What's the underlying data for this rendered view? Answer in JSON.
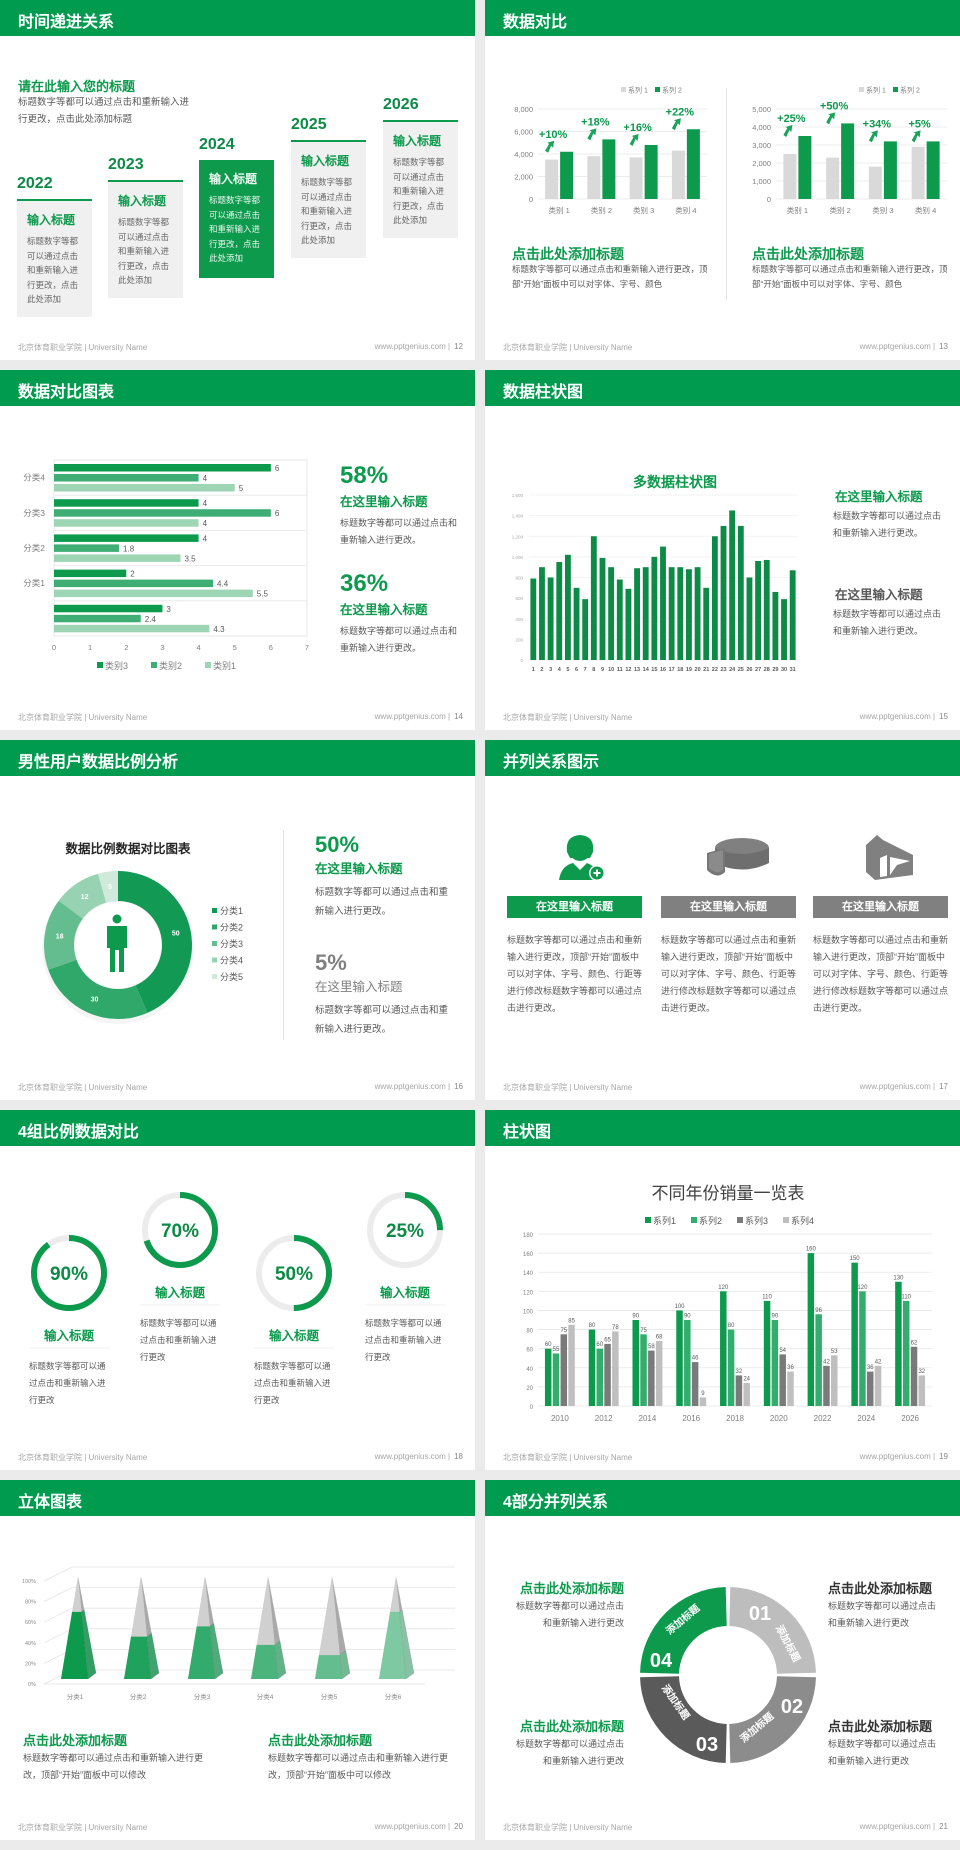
{
  "footer": {
    "school": "北京体育职业学院 | University Name",
    "site": "www.pptgenius.com  |"
  },
  "colors": {
    "brand": "#009b4f",
    "green": "#0d9a4d",
    "gray": "#7f7f7f",
    "light_gray": "#d9d9d9"
  },
  "s12": {
    "title": "时间递进关系",
    "page": "12",
    "subtitle": "请在此输入您的标题",
    "desc": "标题数字等都可以通过点击和重新输入进行更改，点击此处添加标题",
    "steps": [
      {
        "year": "2022",
        "heading": "输入标题",
        "body": "标题数字等都可以通过点击和重新输入进行更改，点击此处添加"
      },
      {
        "year": "2023",
        "heading": "输入标题",
        "body": "标题数字等都可以通过点击和重新输入进行更改，点击此处添加"
      },
      {
        "year": "2024",
        "heading": "输入标题",
        "body": "标题数字等都可以通过点击和重新输入进行更改，点击此处添加",
        "active": true
      },
      {
        "year": "2025",
        "heading": "输入标题",
        "body": "标题数字等都可以通过点击和重新输入进行更改，点击此处添加"
      },
      {
        "year": "2026",
        "heading": "输入标题",
        "body": "标题数字等都可以通过点击和重新输入进行更改，点击此处添加"
      }
    ]
  },
  "s13": {
    "title": "数据对比",
    "page": "13",
    "blocks": [
      {
        "heading": "点击此处添加标题",
        "body": "标题数字等都可以通过点击和重新输入进行更改，顶部“开始”面板中可以对字体、字号、颜色"
      },
      {
        "heading": "点击此处添加标题",
        "body": "标题数字等都可以通过点击和重新输入进行更改，顶部“开始”面板中可以对字体、字号、颜色"
      }
    ]
  },
  "s14": {
    "title": "数据对比图表",
    "page": "14",
    "stats": [
      {
        "value": "58%",
        "heading": "在这里输入标题",
        "body": "标题数字等都可以通过点击和重新输入进行更改。"
      },
      {
        "value": "36%",
        "heading": "在这里输入标题",
        "body": "标题数字等都可以通过点击和重新输入进行更改。"
      }
    ]
  },
  "s15": {
    "title": "数据柱状图",
    "page": "15",
    "blocks": [
      {
        "heading": "在这里输入标题",
        "body": "标题数字等都可以通过点击和重新输入进行更改。"
      },
      {
        "heading": "在这里输入标题",
        "body": "标题数字等都可以通过点击和重新输入进行更改。"
      }
    ]
  },
  "s16": {
    "title": "男性用户数据比例分析",
    "page": "16",
    "stats": [
      {
        "value": "50%",
        "heading": "在这里输入标题",
        "body": "标题数字等都可以通过点击和重新输入进行更改。"
      },
      {
        "value": "5%",
        "heading": "在这里输入标题",
        "body": "标题数字等都可以通过点击和重新输入进行更改。"
      }
    ],
    "icon": "male-person-icon"
  },
  "s17": {
    "title": "并列关系图示",
    "page": "17",
    "items": [
      {
        "icon": "female-user-add-icon",
        "heading": "在这里输入标题",
        "body": "标题数字等都可以通过点击和重新输入进行更改，顶部“开始”面板中可以对字体、字号、颜色、行距等进行修改标题数字等都可以通过点击进行更改。"
      },
      {
        "icon": "pie-chart-3d-icon",
        "heading": "在这里输入标题",
        "body": "标题数字等都可以通过点击和重新输入进行更改，顶部“开始”面板中可以对字体、字号、颜色、行距等进行修改标题数字等都可以通过点击进行更改。"
      },
      {
        "icon": "building-icon",
        "heading": "在这里输入标题",
        "body": "标题数字等都可以通过点击和重新输入进行更改，顶部“开始”面板中可以对字体、字号、颜色、行距等进行修改标题数字等都可以通过点击进行更改。"
      }
    ]
  },
  "s18": {
    "title": "4组比例数据对比",
    "page": "18",
    "items": [
      {
        "percent": 90,
        "label": "90%",
        "heading": "输入标题",
        "body": "标题数字等都可以通过点击和重新输入进行更改"
      },
      {
        "percent": 70,
        "label": "70%",
        "heading": "输入标题",
        "body": "标题数字等都可以通过点击和重新输入进行更改"
      },
      {
        "percent": 50,
        "label": "50%",
        "heading": "输入标题",
        "body": "标题数字等都可以通过点击和重新输入进行更改"
      },
      {
        "percent": 25,
        "label": "25%",
        "heading": "输入标题",
        "body": "标题数字等都可以通过点击和重新输入进行更改"
      }
    ]
  },
  "s19": {
    "title": "柱状图",
    "page": "19"
  },
  "s20": {
    "title": "立体图表",
    "page": "20",
    "blocks": [
      {
        "heading": "点击此处添加标题",
        "body": "标题数字等都可以通过点击和重新输入进行更改，顶部“开始”面板中可以修改"
      },
      {
        "heading": "点击此处添加标题",
        "body": "标题数字等都可以通过点击和重新输入进行更改，顶部“开始”面板中可以修改"
      }
    ]
  },
  "s21": {
    "title": "4部分并列关系",
    "page": "21",
    "segments": [
      {
        "number": "01",
        "label": "添加标题"
      },
      {
        "number": "02",
        "label": "添加标题"
      },
      {
        "number": "03",
        "label": "添加标题"
      },
      {
        "number": "04",
        "label": "添加标题"
      }
    ],
    "blocks": [
      {
        "heading": "点击此处添加标题",
        "body": "标题数字等都可以通过点击和重新输入进行更改"
      },
      {
        "heading": "点击此处添加标题",
        "body": "标题数字等都可以通过点击和重新输入进行更改"
      },
      {
        "heading": "点击此处添加标题",
        "body": "标题数字等都可以通过点击和重新输入进行更改"
      },
      {
        "heading": "点击此处添加标题",
        "body": "标题数字等都可以通过点击和重新输入进行更改"
      }
    ]
  },
  "chart_data": [
    {
      "id": "c13a",
      "type": "bar",
      "categories": [
        "类别 1",
        "类别 2",
        "类别 3",
        "类别 4"
      ],
      "ylim": [
        0,
        8000
      ],
      "yticks": [
        0,
        2000,
        4000,
        6000,
        8000
      ],
      "ytick_labels": [
        "0",
        "2,000",
        "4,000",
        "6,000",
        "8,000"
      ],
      "grid": true,
      "legend": "top-right",
      "series": [
        {
          "name": "系列 1",
          "color": "#d9d9d9",
          "values": [
            3500,
            3800,
            3700,
            4300
          ]
        },
        {
          "name": "系列 2",
          "color": "#0d9a4d",
          "values": [
            4200,
            5300,
            4800,
            6200
          ]
        }
      ],
      "annotations": [
        "+10%",
        "+18%",
        "+16%",
        "+22%"
      ]
    },
    {
      "id": "c13b",
      "type": "bar",
      "categories": [
        "类别 1",
        "类别 2",
        "类别 3",
        "类别 4"
      ],
      "ylim": [
        0,
        5000
      ],
      "yticks": [
        0,
        1000,
        2000,
        3000,
        4000,
        5000
      ],
      "ytick_labels": [
        "0",
        "1,000",
        "2,000",
        "3,000",
        "4,000",
        "5,000"
      ],
      "grid": true,
      "legend": "top-right",
      "series": [
        {
          "name": "系列 1",
          "color": "#d9d9d9",
          "values": [
            2500,
            2300,
            1800,
            2900
          ]
        },
        {
          "name": "系列 2",
          "color": "#0d9a4d",
          "values": [
            3500,
            4200,
            3200,
            3200
          ]
        }
      ],
      "annotations": [
        "+25%",
        "+50%",
        "+34%",
        "+5%"
      ]
    },
    {
      "id": "c14",
      "type": "bar",
      "orientation": "horizontal",
      "categories": [
        "分类4",
        "分类3",
        "分类2",
        "分类1",
        ""
      ],
      "xlim": [
        0,
        7
      ],
      "xticks": [
        "0",
        "1",
        "2",
        "3",
        "4",
        "5",
        "6",
        "7"
      ],
      "legend": "bottom",
      "series": [
        {
          "name": "类别3",
          "color": "#0d9a4d",
          "values": [
            6,
            4,
            4,
            2,
            3
          ]
        },
        {
          "name": "类别2",
          "color": "#3fae74",
          "values": [
            4,
            6,
            1.8,
            4.4,
            2.4
          ]
        },
        {
          "name": "类别1",
          "color": "#9dd5b5",
          "values": [
            5,
            4,
            3.5,
            5.5,
            4.3
          ]
        }
      ]
    },
    {
      "id": "c15",
      "type": "bar",
      "title": "多数据柱状图",
      "ylim": [
        0,
        1600
      ],
      "yticks": [
        "0",
        "200",
        "400",
        "600",
        "800",
        "1,000",
        "1,200",
        "1,400",
        "1,600"
      ],
      "grid": true,
      "categories": [
        "1",
        "2",
        "3",
        "4",
        "5",
        "6",
        "7",
        "8",
        "9",
        "10",
        "11",
        "12",
        "13",
        "14",
        "15",
        "16",
        "17",
        "18",
        "19",
        "20",
        "21",
        "22",
        "23",
        "24",
        "25",
        "26",
        "27",
        "28",
        "29",
        "30",
        "31"
      ],
      "values": [
        790,
        900,
        800,
        950,
        1020,
        700,
        590,
        1200,
        990,
        900,
        780,
        690,
        890,
        900,
        1000,
        1100,
        900,
        900,
        880,
        900,
        700,
        1200,
        1300,
        1450,
        1300,
        800,
        960,
        970,
        660,
        590,
        870
      ],
      "color": "#0d8a45"
    },
    {
      "id": "c16",
      "type": "pie",
      "donut": true,
      "title": "数据比例数据对比图表",
      "legend": "right",
      "categories": [
        "分类1",
        "分类2",
        "分类3",
        "分类4",
        "分类5"
      ],
      "values": [
        50,
        30,
        18,
        12,
        5
      ],
      "colors": [
        "#129a55",
        "#2fa86a",
        "#64bd8e",
        "#97d2b2",
        "#cfe9db"
      ]
    },
    {
      "id": "c19",
      "type": "bar",
      "title": "不同年份销量一览表",
      "legend": "top",
      "ylim": [
        0,
        180
      ],
      "yticks": [
        "0",
        "20",
        "40",
        "60",
        "80",
        "100",
        "120",
        "140",
        "160",
        "180"
      ],
      "grid": true,
      "categories": [
        "2010",
        "2012",
        "2014",
        "2016",
        "2018",
        "2020",
        "2022",
        "2024",
        "2026"
      ],
      "series": [
        {
          "name": "系列1",
          "color": "#0d9a4d",
          "values": [
            60,
            80,
            90,
            100,
            120,
            110,
            160,
            150,
            130
          ]
        },
        {
          "name": "系列2",
          "color": "#33ad6e",
          "values": [
            55,
            60,
            75,
            90,
            80,
            90,
            96,
            120,
            110
          ]
        },
        {
          "name": "系列3",
          "color": "#7a7a7a",
          "values": [
            75,
            65,
            58,
            46,
            32,
            54,
            42,
            36,
            62
          ]
        },
        {
          "name": "系列4",
          "color": "#bfbfbf",
          "values": [
            85,
            78,
            68,
            9,
            24,
            36,
            53,
            42,
            32
          ]
        }
      ]
    },
    {
      "id": "c20",
      "type": "bar",
      "style": "3d-pyramid",
      "stacked_percent": true,
      "ylim": [
        0,
        100
      ],
      "yticks": [
        "0%",
        "20%",
        "40%",
        "60%",
        "80%",
        "100%"
      ],
      "grid": true,
      "categories": [
        "分类1",
        "分类2",
        "分类3",
        "分类4",
        "分类5",
        "分类6"
      ],
      "values": [
        70,
        46,
        56,
        38,
        28,
        70
      ],
      "colors": [
        "#0d9a4d",
        "#1fa25c",
        "#33ab6c",
        "#4bb47d",
        "#63bd8e",
        "#7ec9a2"
      ],
      "remainder_color": "#d0d0d0"
    }
  ]
}
